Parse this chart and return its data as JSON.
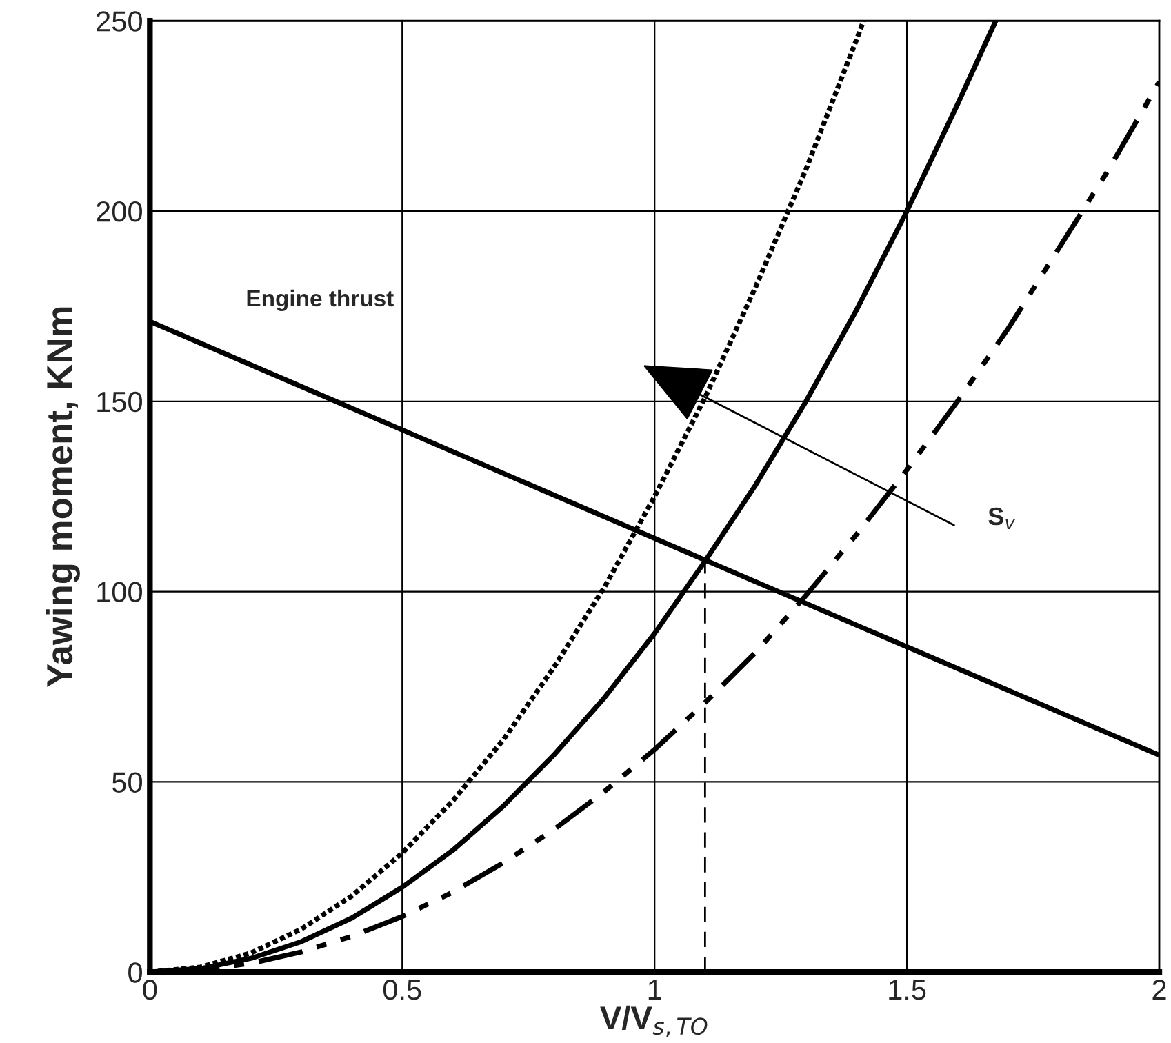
{
  "chart_data": {
    "type": "line",
    "xlabel": "V/V$_{s,TO}$",
    "ylabel": "Yawing moment, KNm",
    "xlim": [
      0,
      2
    ],
    "xticks": [
      0,
      0.5,
      1,
      1.5,
      2
    ],
    "ylim": [
      0,
      250
    ],
    "yticks": [
      0,
      50,
      100,
      150,
      200,
      250
    ],
    "grid": true,
    "series": [
      {
        "name": "Engine thrust",
        "color": "#000000",
        "line_style": "solid",
        "x": [
          0,
          2
        ],
        "values": [
          171,
          57
        ]
      },
      {
        "color": "#000000",
        "line_style": "dotted",
        "x": [
          0,
          0.1,
          0.2,
          0.3,
          0.4,
          0.5,
          0.6,
          0.7,
          0.8,
          0.9,
          1.0,
          1.1,
          1.2,
          1.3,
          1.4,
          1.414
        ],
        "values": [
          0,
          1.3,
          5,
          11.3,
          20,
          31.3,
          45,
          61,
          80,
          101,
          125,
          151,
          180,
          211,
          245,
          250
        ]
      },
      {
        "color": "#000000",
        "line_style": "solid",
        "x": [
          0,
          0.1,
          0.2,
          0.3,
          0.4,
          0.5,
          0.6,
          0.7,
          0.8,
          0.9,
          1.0,
          1.1,
          1.2,
          1.3,
          1.4,
          1.5,
          1.6,
          1.676
        ],
        "values": [
          0,
          0.9,
          3.6,
          8,
          14.2,
          22.3,
          32,
          43.6,
          57,
          72,
          89,
          108,
          128,
          150,
          174,
          200,
          228,
          250
        ]
      },
      {
        "color": "#000000",
        "line_style": "dashdotdot",
        "x": [
          0,
          0.1,
          0.2,
          0.3,
          0.4,
          0.5,
          0.6,
          0.7,
          0.8,
          0.9,
          1.0,
          1.1,
          1.2,
          1.3,
          1.4,
          1.5,
          1.6,
          1.7,
          1.8,
          1.9,
          2.0
        ],
        "values": [
          0,
          0.6,
          2.3,
          5.3,
          9.4,
          14.6,
          21,
          28.7,
          37.4,
          47.4,
          58.5,
          70.8,
          84,
          99,
          115,
          132,
          150,
          169,
          190,
          211,
          234
        ]
      }
    ],
    "ref_lines": [
      {
        "axis": "x",
        "value": 1.1,
        "line_style": "dashed"
      }
    ],
    "annotations": [
      "S$_{v}$"
    ]
  }
}
